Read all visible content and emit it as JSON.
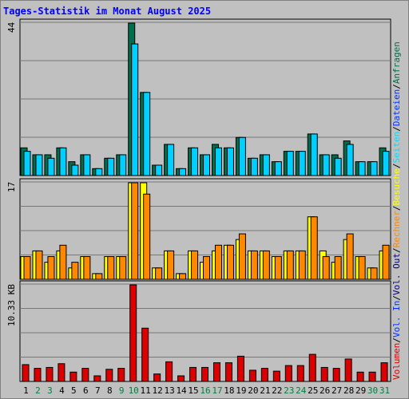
{
  "title": "Tages-Statistik im Monat August 2025",
  "colors": {
    "anfragen": "#006e4a",
    "dateien": "#00cfff",
    "seiten": "#00ddff",
    "besuche": "#ffff00",
    "rechner": "#ff8800",
    "volumen": "#dd0000",
    "weekend": "#008040",
    "weekday": "#000000",
    "bg": "#c0c0c0"
  },
  "legend": {
    "volumen": "Volumen",
    "sep1": "/",
    "vol_in": "Vol. In",
    "sep2": "/",
    "vol_out": "Vol. Out",
    "sep3": "/",
    "rechner": "Rechner",
    "sep4": "/",
    "besuche": "Besuche",
    "sep5": "/",
    "seiten": "Seiten",
    "sep6": "/",
    "dateien": "Dateien",
    "sep7": "/",
    "anfragen": "Anfragen"
  },
  "chart_data": [
    {
      "type": "bar",
      "name": "hits",
      "y_max_label": "44",
      "ylim": [
        0,
        44
      ],
      "categories": [
        "1",
        "2",
        "3",
        "4",
        "5",
        "6",
        "7",
        "8",
        "9",
        "10",
        "11",
        "12",
        "13",
        "14",
        "15",
        "16",
        "17",
        "18",
        "19",
        "20",
        "21",
        "22",
        "23",
        "24",
        "25",
        "26",
        "27",
        "28",
        "29",
        "30",
        "31"
      ],
      "weekend_days": [
        "2",
        "3",
        "9",
        "10",
        "16",
        "17",
        "23",
        "24",
        "30",
        "31"
      ],
      "series": [
        {
          "name": "Anfragen",
          "values": [
            8,
            6,
            6,
            8,
            4,
            6,
            2,
            5,
            6,
            44,
            24,
            3,
            9,
            2,
            8,
            6,
            9,
            8,
            11,
            5,
            6,
            4,
            7,
            7,
            12,
            6,
            6,
            10,
            4,
            4,
            8
          ]
        },
        {
          "name": "Dateien",
          "values": [
            7,
            6,
            5,
            8,
            3,
            6,
            2,
            5,
            6,
            38,
            24,
            3,
            9,
            2,
            8,
            6,
            8,
            8,
            11,
            5,
            6,
            4,
            7,
            7,
            12,
            6,
            5,
            9,
            4,
            4,
            7
          ]
        }
      ]
    },
    {
      "type": "bar",
      "name": "visits",
      "y_max_label": "17",
      "ylim": [
        0,
        17
      ],
      "categories": [
        "1",
        "2",
        "3",
        "4",
        "5",
        "6",
        "7",
        "8",
        "9",
        "10",
        "11",
        "12",
        "13",
        "14",
        "15",
        "16",
        "17",
        "18",
        "19",
        "20",
        "21",
        "22",
        "23",
        "24",
        "25",
        "26",
        "27",
        "28",
        "29",
        "30",
        "31"
      ],
      "series": [
        {
          "name": "Besuche",
          "values": [
            4,
            5,
            3,
            5,
            2,
            4,
            1,
            4,
            4,
            17,
            17,
            2,
            5,
            1,
            5,
            3,
            5,
            6,
            7,
            5,
            5,
            4,
            5,
            5,
            11,
            5,
            3,
            7,
            4,
            2,
            5
          ]
        },
        {
          "name": "Rechner",
          "values": [
            4,
            5,
            4,
            6,
            3,
            4,
            1,
            4,
            4,
            17,
            15,
            2,
            5,
            1,
            5,
            4,
            6,
            6,
            8,
            5,
            5,
            4,
            5,
            5,
            11,
            4,
            4,
            8,
            4,
            2,
            6
          ]
        }
      ]
    },
    {
      "type": "bar",
      "name": "volume",
      "y_max_label": "10.33 KB",
      "ylim": [
        0,
        10.33
      ],
      "categories": [
        "1",
        "2",
        "3",
        "4",
        "5",
        "6",
        "7",
        "8",
        "9",
        "10",
        "11",
        "12",
        "13",
        "14",
        "15",
        "16",
        "17",
        "18",
        "19",
        "20",
        "21",
        "22",
        "23",
        "24",
        "25",
        "26",
        "27",
        "28",
        "29",
        "30",
        "31"
      ],
      "series": [
        {
          "name": "Volumen",
          "values": [
            1.8,
            1.4,
            1.5,
            1.9,
            1.0,
            1.4,
            0.6,
            1.3,
            1.4,
            10.33,
            5.7,
            0.8,
            2.1,
            0.6,
            1.5,
            1.5,
            2.0,
            2.0,
            2.7,
            1.2,
            1.4,
            1.1,
            1.7,
            1.7,
            2.9,
            1.5,
            1.4,
            2.4,
            1.0,
            1.0,
            2.0
          ]
        }
      ]
    }
  ]
}
